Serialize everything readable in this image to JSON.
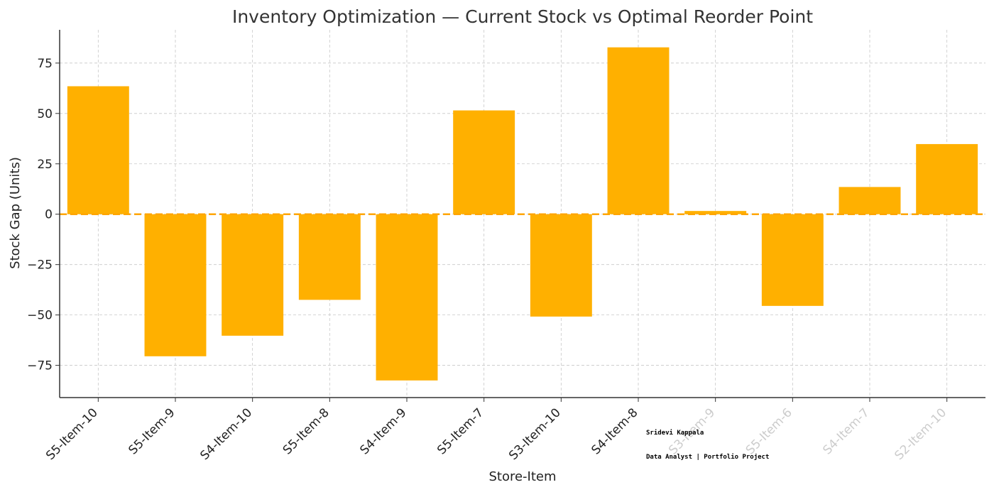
{
  "chart_data": {
    "type": "bar",
    "title": "Inventory Optimization — Current Stock vs Optimal Reorder Point",
    "xlabel": "Store-Item",
    "ylabel": "Stock Gap (Units)",
    "categories": [
      "S5-Item-10",
      "S5-Item-9",
      "S4-Item-10",
      "S5-Item-8",
      "S4-Item-9",
      "S5-Item-7",
      "S3-Item-10",
      "S4-Item-8",
      "S3-Item-9",
      "S5-Item-6",
      "S4-Item-7",
      "S2-Item-10"
    ],
    "values": [
      63.5,
      -70.5,
      -60.3,
      -42.5,
      -82.5,
      51.5,
      -50.8,
      82.8,
      1.6,
      -45.5,
      13.5,
      34.8
    ],
    "ylim": [
      -91,
      91.5
    ],
    "yticks": [
      -75,
      -50,
      -25,
      0,
      25,
      50,
      75
    ],
    "ytick_labels": [
      "−75",
      "−50",
      "−25",
      "0",
      "25",
      "50",
      "75"
    ],
    "grid": true,
    "reference_line": 0,
    "bar_color": "#ffb000",
    "reference_line_color": "#ffa500",
    "obscured_labels": [
      "S3-Item-9",
      "S5-Item-6",
      "S4-Item-7",
      "S2-Item-10"
    ]
  },
  "signature": {
    "name": "Sridevi Kappala",
    "role": "Data Analyst | Portfolio Project"
  }
}
